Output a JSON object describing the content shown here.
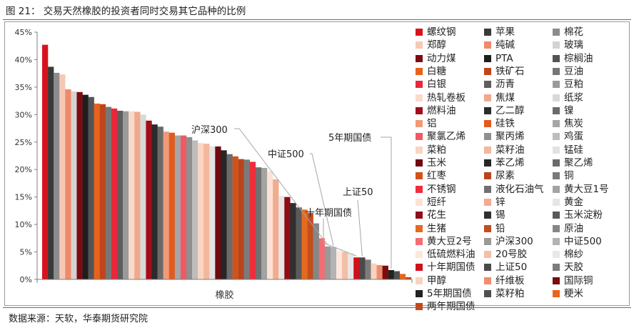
{
  "figure": {
    "title": "图 21：  交易天然橡胶的投资者同时交易其它品种的比例",
    "source": "数据来源：天软，华泰期货研究院"
  },
  "chart_data": {
    "type": "bar",
    "xlabel": "橡胶",
    "ylabel": "",
    "ylim": [
      0,
      45
    ],
    "yticks": [
      "0%",
      "5%",
      "10%",
      "15%",
      "20%",
      "25%",
      "30%",
      "35%",
      "40%",
      "45%"
    ],
    "grid": false,
    "legend_position": "right",
    "series": [
      {
        "name": "螺纹钢",
        "value": 42.7,
        "color": "#d7141e"
      },
      {
        "name": "苹果",
        "value": 38.7,
        "color": "#3a3a3a"
      },
      {
        "name": "棉花",
        "value": 37.6,
        "color": "#8c8c8c"
      },
      {
        "name": "郑醇",
        "value": 37.3,
        "color": "#f6c9b4"
      },
      {
        "name": "纯碱",
        "value": 34.6,
        "color": "#ef8a68"
      },
      {
        "name": "玻璃",
        "value": 34.2,
        "color": "#d3d3d3"
      },
      {
        "name": "动力煤",
        "value": 34.1,
        "color": "#7d0b12"
      },
      {
        "name": "PTA",
        "value": 33.6,
        "color": "#1e1e1e"
      },
      {
        "name": "棕榈油",
        "value": 33.2,
        "color": "#545454"
      },
      {
        "name": "白糖",
        "value": 32.0,
        "color": "#e8621b"
      },
      {
        "name": "铁矿石",
        "value": 31.9,
        "color": "#c0451c"
      },
      {
        "name": "豆油",
        "value": 31.4,
        "color": "#777777"
      },
      {
        "name": "白银",
        "value": 31.1,
        "color": "#ea2738"
      },
      {
        "name": "沥青",
        "value": 30.7,
        "color": "#5e5e5e"
      },
      {
        "name": "豆粕",
        "value": 30.6,
        "color": "#9a9a9a"
      },
      {
        "name": "热轧卷板",
        "value": 30.6,
        "color": "#f9d9cc"
      },
      {
        "name": "焦煤",
        "value": 30.5,
        "color": "#f0a88c"
      },
      {
        "name": "纸浆",
        "value": 30.0,
        "color": "#d9d9d9"
      },
      {
        "name": "燃料油",
        "value": 28.9,
        "color": "#a30d19"
      },
      {
        "name": "乙二醇",
        "value": 28.2,
        "color": "#2b2b2b"
      },
      {
        "name": "镍",
        "value": 27.8,
        "color": "#6a6a6a"
      },
      {
        "name": "铝",
        "value": 26.9,
        "color": "#f09a78"
      },
      {
        "name": "硅铁",
        "value": 26.7,
        "color": "#e35a1e"
      },
      {
        "name": "焦炭",
        "value": 26.2,
        "color": "#a6a6a6"
      },
      {
        "name": "聚氯乙烯",
        "value": 26.2,
        "color": "#f05a63"
      },
      {
        "name": "聚丙烯",
        "value": 25.9,
        "color": "#8f8f8f"
      },
      {
        "name": "鸡蛋",
        "value": 25.3,
        "color": "#bdbdbd"
      },
      {
        "name": "菜粕",
        "value": 24.8,
        "color": "#fbd4c2"
      },
      {
        "name": "菜籽油",
        "value": 24.7,
        "color": "#f3b79c"
      },
      {
        "name": "锰硅",
        "value": 24.2,
        "color": "#e2e2e2"
      },
      {
        "name": "玉米",
        "value": 24.2,
        "color": "#6e0a10"
      },
      {
        "name": "苯乙烯",
        "value": 23.5,
        "color": "#262626"
      },
      {
        "name": "聚乙烯",
        "value": 22.8,
        "color": "#6b6b6b"
      },
      {
        "name": "红枣",
        "value": 22.4,
        "color": "#d2521c"
      },
      {
        "name": "尿素",
        "value": 21.9,
        "color": "#b8441d"
      },
      {
        "name": "铜",
        "value": 21.8,
        "color": "#7a7a7a"
      },
      {
        "name": "不锈钢",
        "value": 21.4,
        "color": "#ef2d3d"
      },
      {
        "name": "液化石油气",
        "value": 20.4,
        "color": "#707070"
      },
      {
        "name": "黄大豆1号",
        "value": 20.3,
        "color": "#a3a3a3"
      },
      {
        "name": "短纤",
        "value": 19.7,
        "color": "#fce2d6"
      },
      {
        "name": "锌",
        "value": 18.2,
        "color": "#f2ab8e"
      },
      {
        "name": "黄金",
        "value": 15.2,
        "color": "#e6e6e6"
      },
      {
        "name": "花生",
        "value": 15.0,
        "color": "#8f0e16"
      },
      {
        "name": "锡",
        "value": 13.9,
        "color": "#303030"
      },
      {
        "name": "玉米淀粉",
        "value": 13.1,
        "color": "#5a5a5a"
      },
      {
        "name": "生猪",
        "value": 12.7,
        "color": "#e5691f"
      },
      {
        "name": "铅",
        "value": 12.1,
        "color": "#c24d1d"
      },
      {
        "name": "原油",
        "value": 10.2,
        "color": "#868686"
      },
      {
        "name": "黄大豆2号",
        "value": 7.5,
        "color": "#f36d74"
      },
      {
        "name": "沪深300",
        "value": 6.0,
        "color": "#999999"
      },
      {
        "name": "中证500",
        "value": 5.9,
        "color": "#b3b3b3"
      },
      {
        "name": "低硫燃料油",
        "value": 5.2,
        "color": "#fde6dc"
      },
      {
        "name": "20号胶",
        "value": 5.0,
        "color": "#f4bfa6"
      },
      {
        "name": "棉纱",
        "value": 4.7,
        "color": "#e8e8e8"
      },
      {
        "name": "十年期国债",
        "value": 4.0,
        "color": "#d0101c"
      },
      {
        "name": "上证50",
        "value": 4.0,
        "color": "#4a4a4a"
      },
      {
        "name": "天胶",
        "value": 3.6,
        "color": "#7c7c7c"
      },
      {
        "name": "甲醇",
        "value": 2.9,
        "color": "#f9d2c0"
      },
      {
        "name": "纤维板",
        "value": 2.6,
        "color": "#ee8e6c"
      },
      {
        "name": "国际铜",
        "value": 2.5,
        "color": "#7a0c0c"
      },
      {
        "name": "5年期国债",
        "value": 1.7,
        "color": "#222222"
      },
      {
        "name": "菜籽粕",
        "value": 1.5,
        "color": "#4f4f4f"
      },
      {
        "name": "粳米",
        "value": 1.0,
        "color": "#e8651a"
      },
      {
        "name": "两年期国债",
        "value": 0.4,
        "color": "#bf4a1d"
      }
    ],
    "annotations": [
      {
        "text": "沪深300",
        "target": "沪深300"
      },
      {
        "text": "中证500",
        "target": "中证500"
      },
      {
        "text": "5年期国债",
        "target": "5年期国债"
      },
      {
        "text": "上证50",
        "target": "上证50"
      },
      {
        "text": "十年期国债",
        "target": "十年期国债"
      }
    ]
  }
}
